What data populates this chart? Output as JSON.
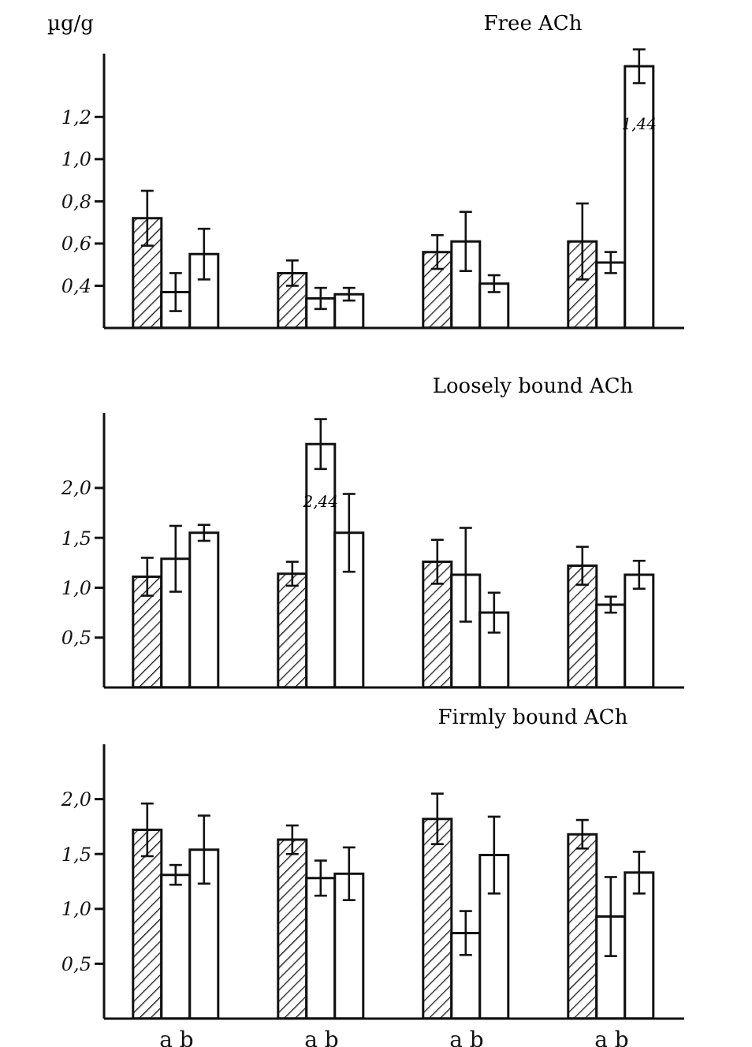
{
  "chart_data": [
    {
      "type": "bar",
      "title": "Free ACh",
      "ylabel": "µg/g",
      "categories": [
        null,
        null,
        null,
        null
      ],
      "tick_labels": "y",
      "ylim": [
        0.2,
        1.5
      ],
      "yticks": [
        {
          "value": 0.4,
          "label": "0,4"
        },
        {
          "value": 0.6,
          "label": "0,6"
        },
        {
          "value": 0.8,
          "label": "0,8"
        },
        {
          "value": 1.0,
          "label": "1,0"
        },
        {
          "value": 1.2,
          "label": "1,2"
        }
      ],
      "grid": false,
      "legend": false,
      "series": [
        {
          "color": "#111111",
          "values": [
            0.72,
            0.46,
            0.56,
            0.61
          ],
          "errors": [
            0.13,
            0.06,
            0.08,
            0.18
          ]
        },
        {
          "color": "#ffffff",
          "values": [
            0.37,
            0.34,
            0.61,
            0.51
          ],
          "errors": [
            0.09,
            0.05,
            0.14,
            0.05
          ]
        },
        {
          "color": "#ffffff",
          "values": [
            0.55,
            0.36,
            0.41,
            1.44
          ],
          "errors": [
            0.12,
            0.03,
            0.04,
            0.08
          ],
          "value_labels": [
            null,
            null,
            null,
            "1,44"
          ]
        }
      ]
    },
    {
      "type": "bar",
      "title": "Loosely bound ACh",
      "categories": [
        null,
        null,
        null,
        null
      ],
      "tick_labels": "y",
      "ylim": [
        0,
        2.75
      ],
      "yticks": [
        {
          "value": 0.5,
          "label": "0,5"
        },
        {
          "value": 1.0,
          "label": "1,0"
        },
        {
          "value": 1.5,
          "label": "1,5"
        },
        {
          "value": 2.0,
          "label": "2,0"
        }
      ],
      "grid": false,
      "legend": false,
      "series": [
        {
          "color": "#111111",
          "values": [
            1.11,
            1.14,
            1.26,
            1.22
          ],
          "errors": [
            0.19,
            0.12,
            0.22,
            0.19
          ]
        },
        {
          "color": "#ffffff",
          "values": [
            1.29,
            2.44,
            1.13,
            0.83
          ],
          "errors": [
            0.33,
            0.25,
            0.47,
            0.08
          ],
          "value_labels": [
            null,
            "2,44",
            null,
            null
          ]
        },
        {
          "color": "#ffffff",
          "values": [
            1.55,
            1.55,
            0.75,
            1.13
          ],
          "errors": [
            0.08,
            0.39,
            0.2,
            0.14
          ]
        }
      ]
    },
    {
      "type": "bar",
      "title": "Firmly bound ACh",
      "categories": [
        "a b",
        "a b",
        "a b",
        "a b"
      ],
      "ylim": [
        0,
        2.5
      ],
      "yticks": [
        {
          "value": 0.5,
          "label": "0,5"
        },
        {
          "value": 1.0,
          "label": "1,0"
        },
        {
          "value": 1.5,
          "label": "1,5"
        },
        {
          "value": 2.0,
          "label": "2,0"
        }
      ],
      "grid": false,
      "legend": false,
      "series": [
        {
          "color": "#111111",
          "values": [
            1.72,
            1.63,
            1.82,
            1.68
          ],
          "errors": [
            0.24,
            0.13,
            0.23,
            0.13
          ]
        },
        {
          "color": "#ffffff",
          "values": [
            1.31,
            1.28,
            0.78,
            0.93
          ],
          "errors": [
            0.09,
            0.16,
            0.2,
            0.36
          ]
        },
        {
          "color": "#ffffff",
          "values": [
            1.54,
            1.32,
            1.49,
            1.33
          ],
          "errors": [
            0.31,
            0.24,
            0.35,
            0.19
          ]
        }
      ]
    }
  ]
}
